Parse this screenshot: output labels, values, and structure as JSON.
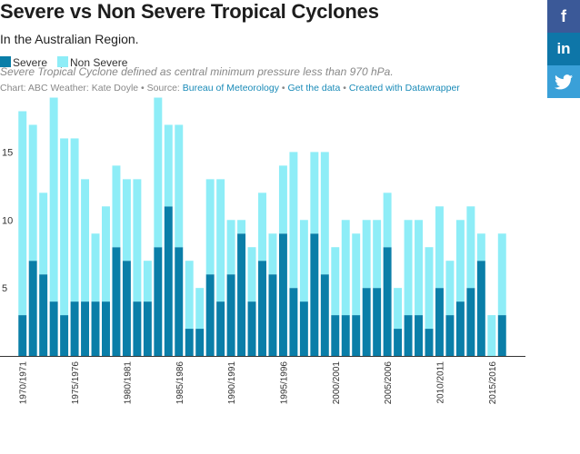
{
  "header": {
    "title": "Severe vs Non Severe Tropical Cyclones",
    "subtitle": "In the Australian Region."
  },
  "legend": {
    "severe": "Severe",
    "non_severe": "Non Severe"
  },
  "note": "Severe Tropical Cyclone defined as central minimum pressure less than 970 hPa.",
  "source": {
    "prefix": "Chart: ABC Weather: Kate Doyle • Source: ",
    "source_link": "Bureau of Meteorology",
    "sep1": " • ",
    "data_link": "Get the data",
    "sep2": " • ",
    "created_link": "Created with Datawrapper"
  },
  "social": {
    "facebook": "f",
    "linkedin": "in",
    "twitter": "t"
  },
  "colors": {
    "severe": "#0a7ea8",
    "non_severe": "#8eedf7",
    "axis": "#333333"
  },
  "chart_data": {
    "type": "bar",
    "stacked": true,
    "categories": [
      "1970/1971",
      "1971/1972",
      "1972/1973",
      "1973/1974",
      "1974/1975",
      "1975/1976",
      "1976/1977",
      "1977/1978",
      "1978/1979",
      "1979/1980",
      "1980/1981",
      "1981/1982",
      "1982/1983",
      "1983/1984",
      "1984/1985",
      "1985/1986",
      "1986/1987",
      "1987/1988",
      "1988/1989",
      "1989/1990",
      "1990/1991",
      "1991/1992",
      "1992/1993",
      "1993/1994",
      "1994/1995",
      "1995/1996",
      "1996/1997",
      "1997/1998",
      "1998/1999",
      "1999/2000",
      "2000/2001",
      "2001/2002",
      "2002/2003",
      "2003/2004",
      "2004/2005",
      "2005/2006",
      "2006/2007",
      "2007/2008",
      "2008/2009",
      "2009/2010",
      "2010/2011",
      "2011/2012",
      "2012/2013",
      "2013/2014",
      "2014/2015",
      "2015/2016",
      "2016/2017"
    ],
    "series": [
      {
        "name": "Severe",
        "values": [
          3,
          7,
          6,
          4,
          3,
          4,
          4,
          4,
          4,
          8,
          7,
          4,
          4,
          8,
          11,
          8,
          2,
          2,
          6,
          4,
          6,
          9,
          4,
          7,
          6,
          9,
          5,
          4,
          9,
          6,
          3,
          3,
          3,
          5,
          5,
          8,
          2,
          3,
          3,
          2,
          5,
          3,
          4,
          5,
          7,
          0,
          3
        ]
      },
      {
        "name": "Non Severe",
        "values": [
          15,
          10,
          6,
          15,
          13,
          12,
          9,
          5,
          7,
          6,
          6,
          9,
          3,
          11,
          6,
          9,
          5,
          3,
          7,
          9,
          4,
          1,
          4,
          5,
          3,
          5,
          10,
          6,
          6,
          9,
          5,
          7,
          6,
          5,
          5,
          4,
          3,
          7,
          7,
          6,
          6,
          4,
          6,
          6,
          2,
          3,
          6
        ]
      }
    ],
    "x_tick_labels": [
      "1970/1971",
      "1975/1976",
      "1980/1981",
      "1985/1986",
      "1990/1991",
      "1995/1996",
      "2000/2001",
      "2005/2006",
      "2010/2011",
      "2015/2016"
    ],
    "y_ticks": [
      5,
      10,
      15
    ],
    "ylim": [
      0,
      18.5
    ],
    "grid": false,
    "legend_position": "top-left"
  }
}
